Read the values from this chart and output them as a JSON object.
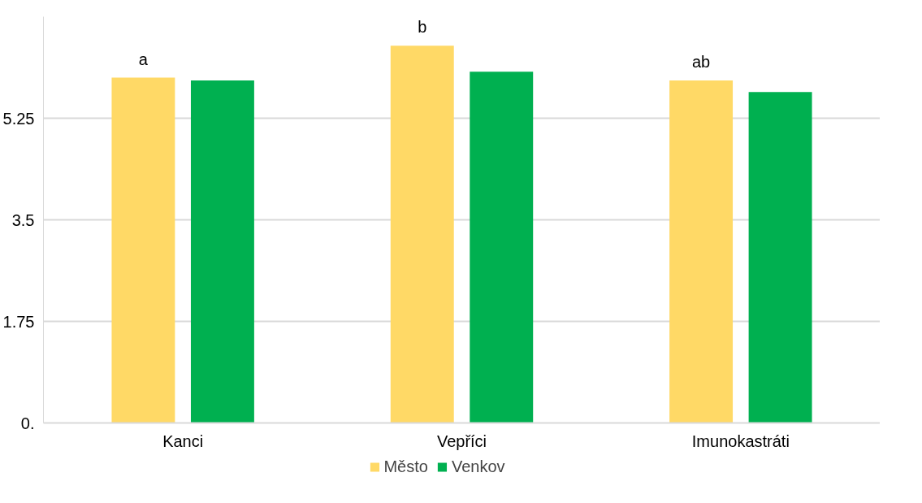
{
  "chart_data": {
    "type": "bar",
    "categories": [
      "Kanci",
      "Vepříci",
      "Imunokastráti"
    ],
    "series": [
      {
        "name": "Město",
        "color": "#ffd966",
        "values": [
          5.95,
          6.5,
          5.9
        ]
      },
      {
        "name": "Venkov",
        "color": "#00b050",
        "values": [
          5.9,
          6.05,
          5.7
        ]
      }
    ],
    "ylim": [
      0,
      7
    ],
    "yticks": [
      {
        "value": 0,
        "label": "0."
      },
      1.75,
      3.5,
      5.25
    ],
    "annotations": [
      "a",
      "b",
      "ab"
    ],
    "grid": "y",
    "legend": "bottom"
  }
}
